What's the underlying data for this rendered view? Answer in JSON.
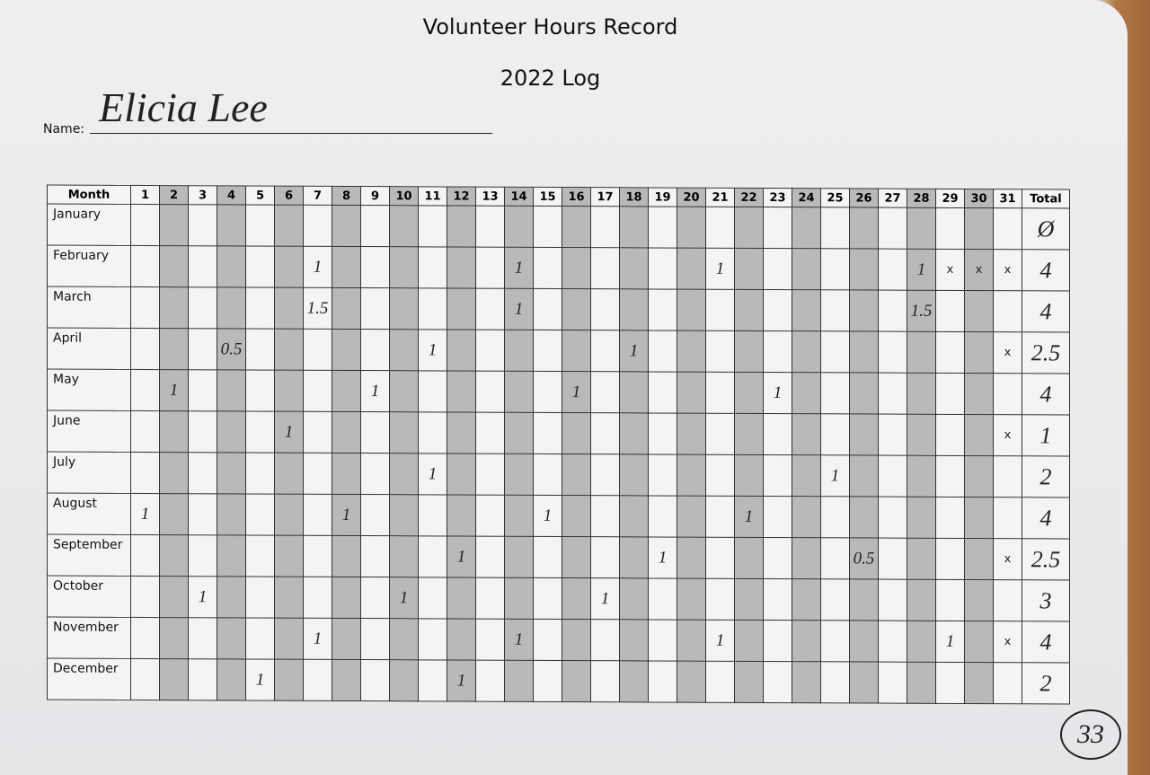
{
  "header": {
    "title": "Volunteer Hours Record",
    "subtitle": "2022 Log"
  },
  "name": {
    "label": "Name:",
    "value": "Elicia Lee"
  },
  "table": {
    "columns": [
      "Month",
      "1",
      "2",
      "3",
      "4",
      "5",
      "6",
      "7",
      "8",
      "9",
      "10",
      "11",
      "12",
      "13",
      "14",
      "15",
      "16",
      "17",
      "18",
      "19",
      "20",
      "21",
      "22",
      "23",
      "24",
      "25",
      "26",
      "27",
      "28",
      "29",
      "30",
      "31",
      "Total"
    ],
    "rows": [
      {
        "month": "January",
        "cells": [
          null,
          null,
          null,
          null,
          null,
          null,
          null,
          null,
          null,
          null,
          null,
          null,
          null,
          null,
          null,
          null,
          null,
          null,
          null,
          null,
          null,
          null,
          null,
          null,
          null,
          null,
          null,
          null,
          null,
          null,
          null
        ],
        "total": "Ø"
      },
      {
        "month": "February",
        "cells": [
          null,
          null,
          null,
          null,
          null,
          null,
          "1",
          null,
          null,
          null,
          null,
          null,
          null,
          "1",
          null,
          null,
          null,
          null,
          null,
          null,
          "1",
          null,
          null,
          null,
          null,
          null,
          null,
          "1",
          "x",
          "x",
          "x"
        ],
        "total": "4"
      },
      {
        "month": "March",
        "cells": [
          null,
          null,
          null,
          null,
          null,
          null,
          "1.5",
          null,
          null,
          null,
          null,
          null,
          null,
          "1",
          null,
          null,
          null,
          null,
          null,
          null,
          null,
          null,
          null,
          null,
          null,
          null,
          null,
          "1.5",
          null,
          null,
          null
        ],
        "total": "4"
      },
      {
        "month": "April",
        "cells": [
          null,
          null,
          null,
          "0.5",
          null,
          null,
          null,
          null,
          null,
          null,
          "1",
          null,
          null,
          null,
          null,
          null,
          null,
          "1",
          null,
          null,
          null,
          null,
          null,
          null,
          null,
          null,
          null,
          null,
          null,
          null,
          "x"
        ],
        "total": "2.5"
      },
      {
        "month": "May",
        "cells": [
          null,
          "1",
          null,
          null,
          null,
          null,
          null,
          null,
          "1",
          null,
          null,
          null,
          null,
          null,
          null,
          "1",
          null,
          null,
          null,
          null,
          null,
          null,
          "1",
          null,
          null,
          null,
          null,
          null,
          null,
          null,
          null
        ],
        "total": "4"
      },
      {
        "month": "June",
        "cells": [
          null,
          null,
          null,
          null,
          null,
          "1",
          null,
          null,
          null,
          null,
          null,
          null,
          null,
          null,
          null,
          null,
          null,
          null,
          null,
          null,
          null,
          null,
          null,
          null,
          null,
          null,
          null,
          null,
          null,
          null,
          "x"
        ],
        "total": "1"
      },
      {
        "month": "July",
        "cells": [
          null,
          null,
          null,
          null,
          null,
          null,
          null,
          null,
          null,
          null,
          "1",
          null,
          null,
          null,
          null,
          null,
          null,
          null,
          null,
          null,
          null,
          null,
          null,
          null,
          "1",
          null,
          null,
          null,
          null,
          null,
          null
        ],
        "total": "2"
      },
      {
        "month": "August",
        "cells": [
          "1",
          null,
          null,
          null,
          null,
          null,
          null,
          "1",
          null,
          null,
          null,
          null,
          null,
          null,
          "1",
          null,
          null,
          null,
          null,
          null,
          null,
          "1",
          null,
          null,
          null,
          null,
          null,
          null,
          null,
          null,
          null
        ],
        "total": "4"
      },
      {
        "month": "September",
        "cells": [
          null,
          null,
          null,
          null,
          null,
          null,
          null,
          null,
          null,
          null,
          null,
          "1",
          null,
          null,
          null,
          null,
          null,
          null,
          "1",
          null,
          null,
          null,
          null,
          null,
          null,
          "0.5",
          null,
          null,
          null,
          null,
          "x"
        ],
        "total": "2.5"
      },
      {
        "month": "October",
        "cells": [
          null,
          null,
          "1",
          null,
          null,
          null,
          null,
          null,
          null,
          "1",
          null,
          null,
          null,
          null,
          null,
          null,
          "1",
          null,
          null,
          null,
          null,
          null,
          null,
          null,
          null,
          null,
          null,
          null,
          null,
          null,
          null
        ],
        "total": "3"
      },
      {
        "month": "November",
        "cells": [
          null,
          null,
          null,
          null,
          null,
          null,
          "1",
          null,
          null,
          null,
          null,
          null,
          null,
          "1",
          null,
          null,
          null,
          null,
          null,
          null,
          "1",
          null,
          null,
          null,
          null,
          null,
          null,
          null,
          "1",
          null,
          "x"
        ],
        "total": "4"
      },
      {
        "month": "December",
        "cells": [
          null,
          null,
          null,
          null,
          "1",
          null,
          null,
          null,
          null,
          null,
          null,
          "1",
          null,
          null,
          null,
          null,
          null,
          null,
          null,
          null,
          null,
          null,
          null,
          null,
          null,
          null,
          null,
          null,
          null,
          null,
          null
        ],
        "total": "2"
      }
    ]
  },
  "grand_total": "33"
}
